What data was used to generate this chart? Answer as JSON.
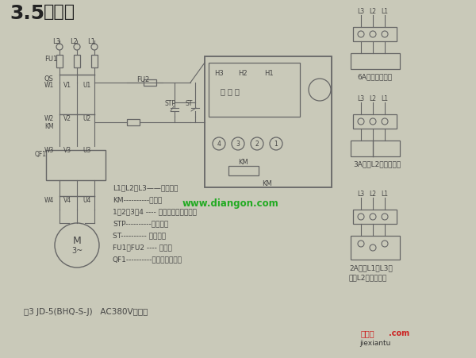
{
  "title_num": "3.5",
  "title_text": "接线图",
  "bg_color": "#c9c9b9",
  "watermark": "www.diangon.com",
  "watermark_color": "#22aa22",
  "caption": "图3 JD-5(BHQ-S-J)   AC380V接线图",
  "legend_lines": [
    "L1、L2、L3——三相电源",
    "KM----------接触器",
    "1、2、3、4 ---- 保护器接线端子号码",
    "STP----------停止按钮",
    "ST---------- 启动按钮",
    "FU1、FU2 ---- 熔断器",
    "QF1----------电动机保护器。"
  ],
  "right_label1": "6A以上一次穿心",
  "right_label2": "3A以上L2相二次穿心",
  "right_label3a": "2A以上L1、L3相",
  "right_label3b": "二次L2相三次穿心",
  "line_color": "#666666",
  "text_color": "#444444",
  "bottom_wm1": "接线图",
  "bottom_wm1_color": "#cc2222",
  "bottom_wm2": ".com",
  "bottom_wm2_color": "#cc2222",
  "bottom_wm3": "jiexiantu",
  "bottom_wm3_color": "#333333"
}
